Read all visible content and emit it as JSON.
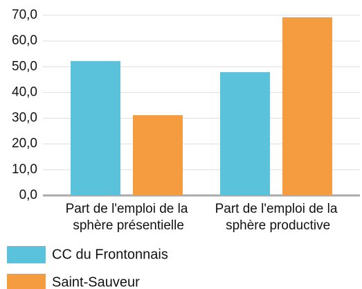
{
  "chart_data": {
    "type": "bar",
    "categories": [
      "Part de l'emploi de la sphère présentielle",
      "Part de l'emploi de la sphère productive"
    ],
    "series": [
      {
        "name": "CC du Frontonnais",
        "color": "#5bc2dc",
        "values": [
          52.2,
          47.9
        ]
      },
      {
        "name": "Saint-Sauveur",
        "color": "#f59b40",
        "values": [
          31.2,
          69.2
        ]
      }
    ],
    "ylim": [
      0,
      70
    ],
    "yticks": [
      {
        "value": 0,
        "label": "0,0"
      },
      {
        "value": 10,
        "label": "10,0"
      },
      {
        "value": 20,
        "label": "20,0"
      },
      {
        "value": 30,
        "label": "30,0"
      },
      {
        "value": 40,
        "label": "40,0"
      },
      {
        "value": 50,
        "label": "50,0"
      },
      {
        "value": 60,
        "label": "60,0"
      },
      {
        "value": 70,
        "label": "70,0"
      }
    ],
    "grid": true
  }
}
